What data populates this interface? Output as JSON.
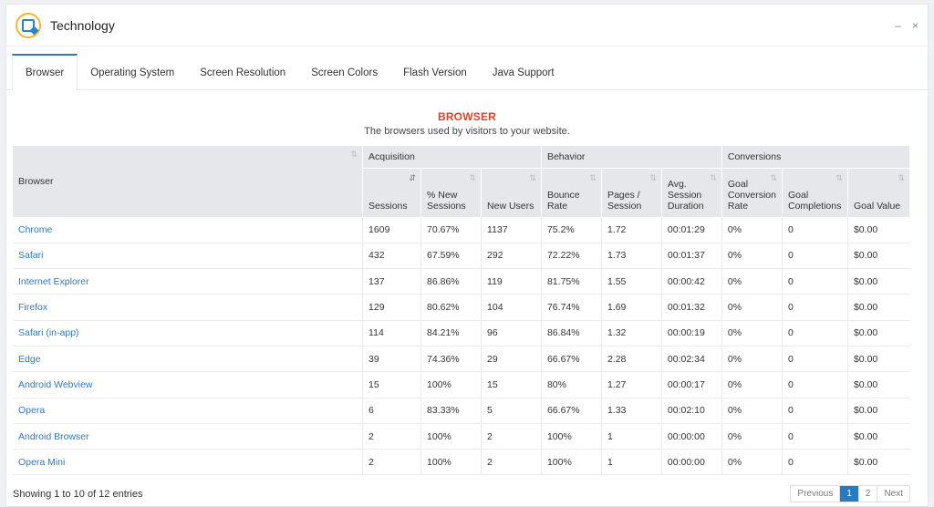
{
  "window": {
    "title": "Technology",
    "minimize": "–",
    "close": "×"
  },
  "tabs": [
    {
      "label": "Browser"
    },
    {
      "label": "Operating System"
    },
    {
      "label": "Screen Resolution"
    },
    {
      "label": "Screen Colors"
    },
    {
      "label": "Flash Version"
    },
    {
      "label": "Java Support"
    }
  ],
  "section": {
    "title": "BROWSER",
    "subtitle": "The browsers used by visitors to your website."
  },
  "table": {
    "groups": {
      "acquisition": "Acquisition",
      "behavior": "Behavior",
      "conversions": "Conversions"
    },
    "columns": [
      "Browser",
      "Sessions",
      "% New Sessions",
      "New Users",
      "Bounce Rate",
      "Pages / Session",
      "Avg. Session Duration",
      "Goal Conversion Rate",
      "Goal Completions",
      "Goal Value"
    ],
    "rows": [
      [
        "Chrome",
        "1609",
        "70.67%",
        "1137",
        "75.2%",
        "1.72",
        "00:01:29",
        "0%",
        "0",
        "$0.00"
      ],
      [
        "Safari",
        "432",
        "67.59%",
        "292",
        "72.22%",
        "1.73",
        "00:01:37",
        "0%",
        "0",
        "$0.00"
      ],
      [
        "Internet Explorer",
        "137",
        "86.86%",
        "119",
        "81.75%",
        "1.55",
        "00:00:42",
        "0%",
        "0",
        "$0.00"
      ],
      [
        "Firefox",
        "129",
        "80.62%",
        "104",
        "76.74%",
        "1.69",
        "00:01:32",
        "0%",
        "0",
        "$0.00"
      ],
      [
        "Safari (in-app)",
        "114",
        "84.21%",
        "96",
        "86.84%",
        "1.32",
        "00:00:19",
        "0%",
        "0",
        "$0.00"
      ],
      [
        "Edge",
        "39",
        "74.36%",
        "29",
        "66.67%",
        "2.28",
        "00:02:34",
        "0%",
        "0",
        "$0.00"
      ],
      [
        "Android Webview",
        "15",
        "100%",
        "15",
        "80%",
        "1.27",
        "00:00:17",
        "0%",
        "0",
        "$0.00"
      ],
      [
        "Opera",
        "6",
        "83.33%",
        "5",
        "66.67%",
        "1.33",
        "00:02:10",
        "0%",
        "0",
        "$0.00"
      ],
      [
        "Android Browser",
        "2",
        "100%",
        "2",
        "100%",
        "1",
        "00:00:00",
        "0%",
        "0",
        "$0.00"
      ],
      [
        "Opera Mini",
        "2",
        "100%",
        "2",
        "100%",
        "1",
        "00:00:00",
        "0%",
        "0",
        "$0.00"
      ]
    ]
  },
  "footer": {
    "info": "Showing 1 to 10 of 12 entries",
    "previous": "Previous",
    "pages": [
      "1",
      "2"
    ],
    "next": "Next"
  },
  "colors": {
    "accent": "#2a7ac2",
    "title_red": "#d9452b",
    "link": "#2f78c2"
  },
  "icons": {
    "app": "technology-logo-icon",
    "sort": "sort-icon"
  }
}
